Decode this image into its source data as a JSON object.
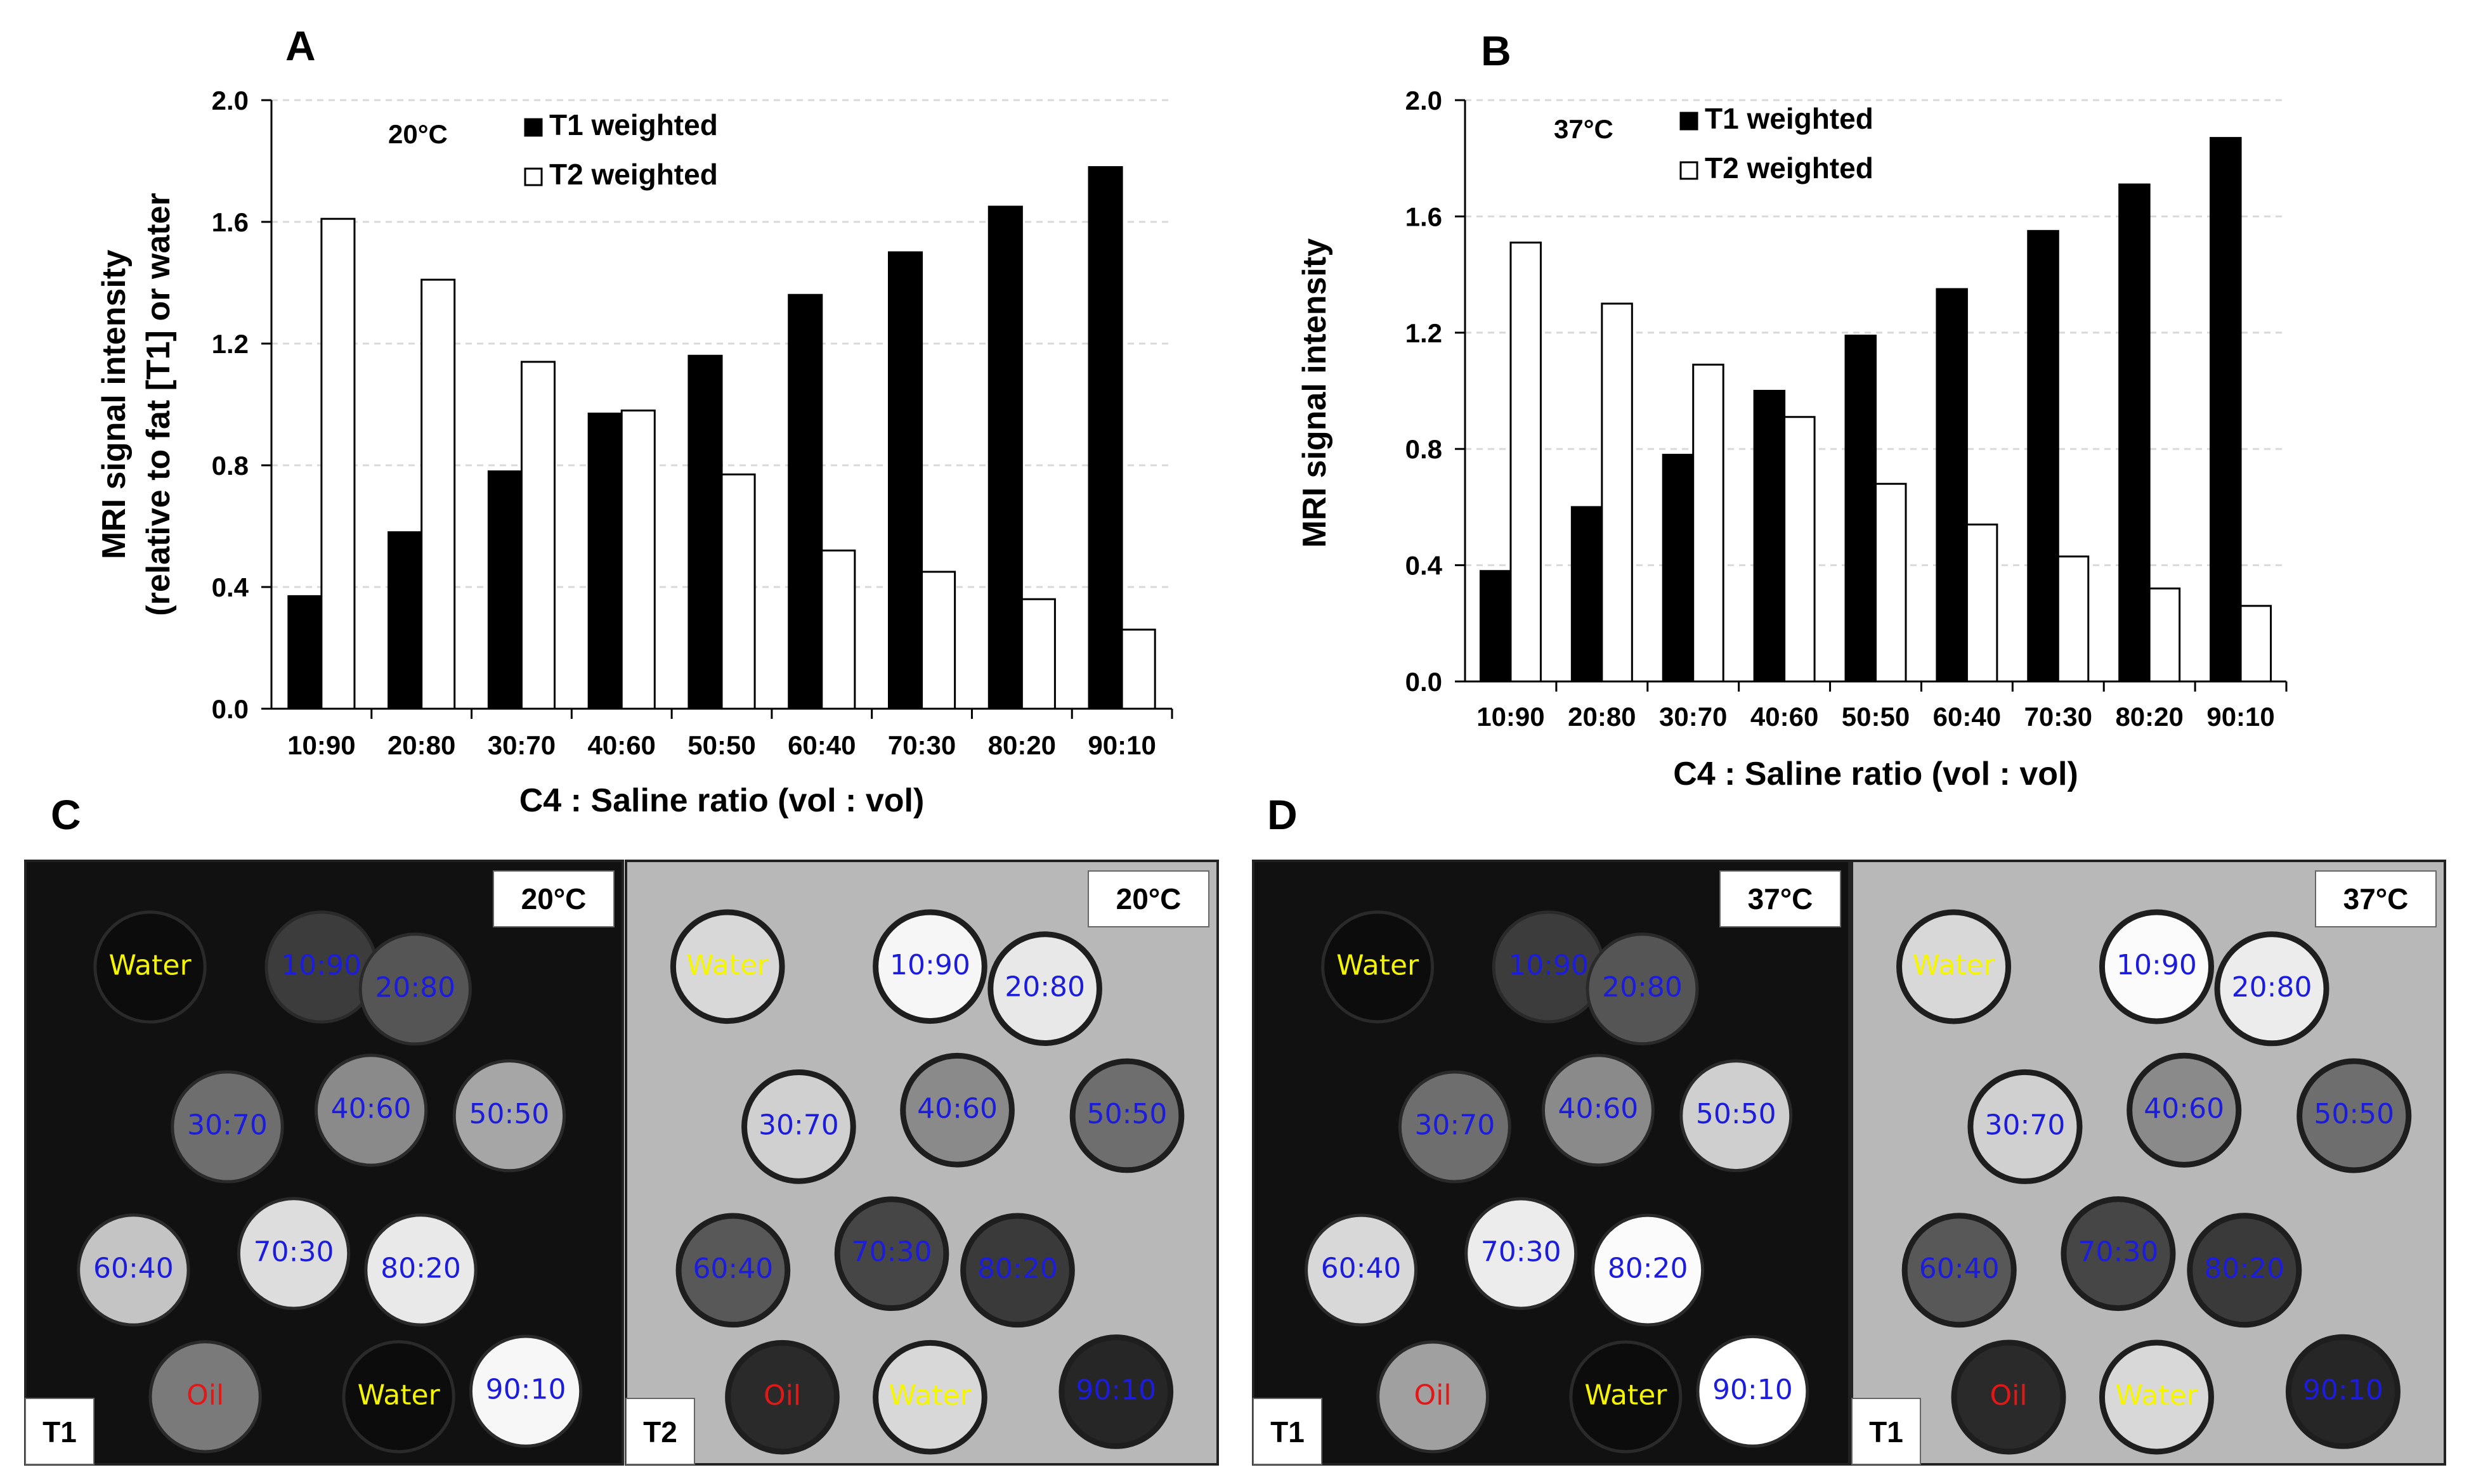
{
  "chart_data": [
    {
      "panel": "A",
      "type": "bar",
      "temperature": "20°C",
      "categories": [
        "10:90",
        "20:80",
        "30:70",
        "40:60",
        "50:50",
        "60:40",
        "70:30",
        "80:20",
        "90:10"
      ],
      "series": [
        {
          "name": "T1 weighted",
          "color": "#000000",
          "values": [
            0.37,
            0.58,
            0.78,
            0.97,
            1.16,
            1.36,
            1.5,
            1.65,
            1.78
          ]
        },
        {
          "name": "T2 weighted",
          "color": "#ffffff",
          "values": [
            1.61,
            1.41,
            1.14,
            0.98,
            0.77,
            0.52,
            0.45,
            0.36,
            0.26
          ]
        }
      ],
      "ylabel_lines": [
        "MRI signal intensity",
        "(relative to fat [T1] or water"
      ],
      "xlabel": "C4 : Saline ratio (vol : vol)",
      "ylim": [
        0,
        2.0
      ],
      "yticks": [
        "0.0",
        "0.4",
        "0.8",
        "1.2",
        "1.6",
        "2.0"
      ],
      "legend": "top-center",
      "grid": true
    },
    {
      "panel": "B",
      "type": "bar",
      "temperature": "37°C",
      "categories": [
        "10:90",
        "20:80",
        "30:70",
        "40:60",
        "50:50",
        "60:40",
        "70:30",
        "80:20",
        "90:10"
      ],
      "series": [
        {
          "name": "T1 weighted",
          "color": "#000000",
          "values": [
            0.38,
            0.6,
            0.78,
            1.0,
            1.19,
            1.35,
            1.55,
            1.71,
            1.87
          ]
        },
        {
          "name": "T2 weighted",
          "color": "#ffffff",
          "values": [
            1.51,
            1.3,
            1.09,
            0.91,
            0.68,
            0.54,
            0.43,
            0.32,
            0.26
          ]
        }
      ],
      "ylabel_lines": [
        "MRI signal intensity"
      ],
      "xlabel": "C4 : Saline ratio (vol : vol)",
      "ylim": [
        0,
        2.0
      ],
      "yticks": [
        "0.0",
        "0.4",
        "0.8",
        "1.2",
        "1.6",
        "2.0"
      ],
      "legend": "top-center",
      "grid": true
    }
  ],
  "mri_panels": [
    {
      "letter": "C",
      "images": [
        {
          "mode": "T1",
          "temperature": "20°C",
          "background": "#111111",
          "vials": [
            {
              "label": "Water",
              "intensity": "#0c0c0c",
              "color": "#f5f500"
            },
            {
              "label": "10:90",
              "intensity": "#3c3c3c",
              "color": "#1c1cdd"
            },
            {
              "label": "20:80",
              "intensity": "#555555",
              "color": "#1c1cdd"
            },
            {
              "label": "30:70",
              "intensity": "#6e6e6e",
              "color": "#1c1cdd"
            },
            {
              "label": "40:60",
              "intensity": "#8a8a8a",
              "color": "#1c1cdd"
            },
            {
              "label": "50:50",
              "intensity": "#a6a6a6",
              "color": "#1c1cdd"
            },
            {
              "label": "60:40",
              "intensity": "#c4c4c4",
              "color": "#1c1cdd"
            },
            {
              "label": "70:30",
              "intensity": "#dddddd",
              "color": "#1c1cdd"
            },
            {
              "label": "80:20",
              "intensity": "#e9e9e9",
              "color": "#1c1cdd"
            },
            {
              "label": "Oil",
              "intensity": "#7a7a7a",
              "color": "#e01818"
            },
            {
              "label": "Water",
              "intensity": "#0c0c0c",
              "color": "#f5f500"
            },
            {
              "label": "90:10",
              "intensity": "#f7f7f7",
              "color": "#1c1cdd"
            }
          ]
        },
        {
          "mode": "T2",
          "temperature": "20°C",
          "background": "#b8b8b8",
          "vials": [
            {
              "label": "Water",
              "intensity": "#d8d8d8",
              "color": "#f5f500"
            },
            {
              "label": "10:90",
              "intensity": "#f6f6f6",
              "color": "#1c1cdd"
            },
            {
              "label": "20:80",
              "intensity": "#e8e8e8",
              "color": "#1c1cdd"
            },
            {
              "label": "30:70",
              "intensity": "#d0d0d0",
              "color": "#1c1cdd"
            },
            {
              "label": "40:60",
              "intensity": "#8a8a8a",
              "color": "#1c1cdd"
            },
            {
              "label": "50:50",
              "intensity": "#6e6e6e",
              "color": "#1c1cdd"
            },
            {
              "label": "60:40",
              "intensity": "#585858",
              "color": "#1c1cdd"
            },
            {
              "label": "70:30",
              "intensity": "#464646",
              "color": "#1c1cdd"
            },
            {
              "label": "80:20",
              "intensity": "#3a3a3a",
              "color": "#1c1cdd"
            },
            {
              "label": "Oil",
              "intensity": "#2a2a2a",
              "color": "#e01818"
            },
            {
              "label": "Water",
              "intensity": "#d8d8d8",
              "color": "#f5f500"
            },
            {
              "label": "90:10",
              "intensity": "#262626",
              "color": "#1c1cdd"
            }
          ]
        }
      ]
    },
    {
      "letter": "D",
      "images": [
        {
          "mode": "T1",
          "temperature": "37°C",
          "background": "#111111",
          "vials": [
            {
              "label": "Water",
              "intensity": "#0c0c0c",
              "color": "#f5f500"
            },
            {
              "label": "10:90",
              "intensity": "#3c3c3c",
              "color": "#1c1cdd"
            },
            {
              "label": "20:80",
              "intensity": "#555555",
              "color": "#1c1cdd"
            },
            {
              "label": "30:70",
              "intensity": "#6e6e6e",
              "color": "#1c1cdd"
            },
            {
              "label": "40:60",
              "intensity": "#8a8a8a",
              "color": "#1c1cdd"
            },
            {
              "label": "50:50",
              "intensity": "#cfcfcf",
              "color": "#1c1cdd"
            },
            {
              "label": "60:40",
              "intensity": "#d8d8d8",
              "color": "#1c1cdd"
            },
            {
              "label": "70:30",
              "intensity": "#ececec",
              "color": "#1c1cdd"
            },
            {
              "label": "80:20",
              "intensity": "#fbfbfb",
              "color": "#1c1cdd"
            },
            {
              "label": "Oil",
              "intensity": "#a0a0a0",
              "color": "#e01818"
            },
            {
              "label": "Water",
              "intensity": "#0c0c0c",
              "color": "#f5f500"
            },
            {
              "label": "90:10",
              "intensity": "#ffffff",
              "color": "#1c1cdd"
            }
          ]
        },
        {
          "mode": "T1",
          "temperature": "37°C",
          "background": "#b8b8b8",
          "vials": [
            {
              "label": "Water",
              "intensity": "#d8d8d8",
              "color": "#f5f500"
            },
            {
              "label": "10:90",
              "intensity": "#fbfbfb",
              "color": "#1c1cdd"
            },
            {
              "label": "20:80",
              "intensity": "#ececec",
              "color": "#1c1cdd"
            },
            {
              "label": "30:70",
              "intensity": "#d0d0d0",
              "color": "#1c1cdd"
            },
            {
              "label": "40:60",
              "intensity": "#8a8a8a",
              "color": "#1c1cdd"
            },
            {
              "label": "50:50",
              "intensity": "#6e6e6e",
              "color": "#1c1cdd"
            },
            {
              "label": "60:40",
              "intensity": "#585858",
              "color": "#1c1cdd"
            },
            {
              "label": "70:30",
              "intensity": "#464646",
              "color": "#1c1cdd"
            },
            {
              "label": "80:20",
              "intensity": "#3a3a3a",
              "color": "#1c1cdd"
            },
            {
              "label": "Oil",
              "intensity": "#2a2a2a",
              "color": "#e01818"
            },
            {
              "label": "Water",
              "intensity": "#d8d8d8",
              "color": "#f5f500"
            },
            {
              "label": "90:10",
              "intensity": "#262626",
              "color": "#1c1cdd"
            }
          ]
        }
      ]
    }
  ]
}
